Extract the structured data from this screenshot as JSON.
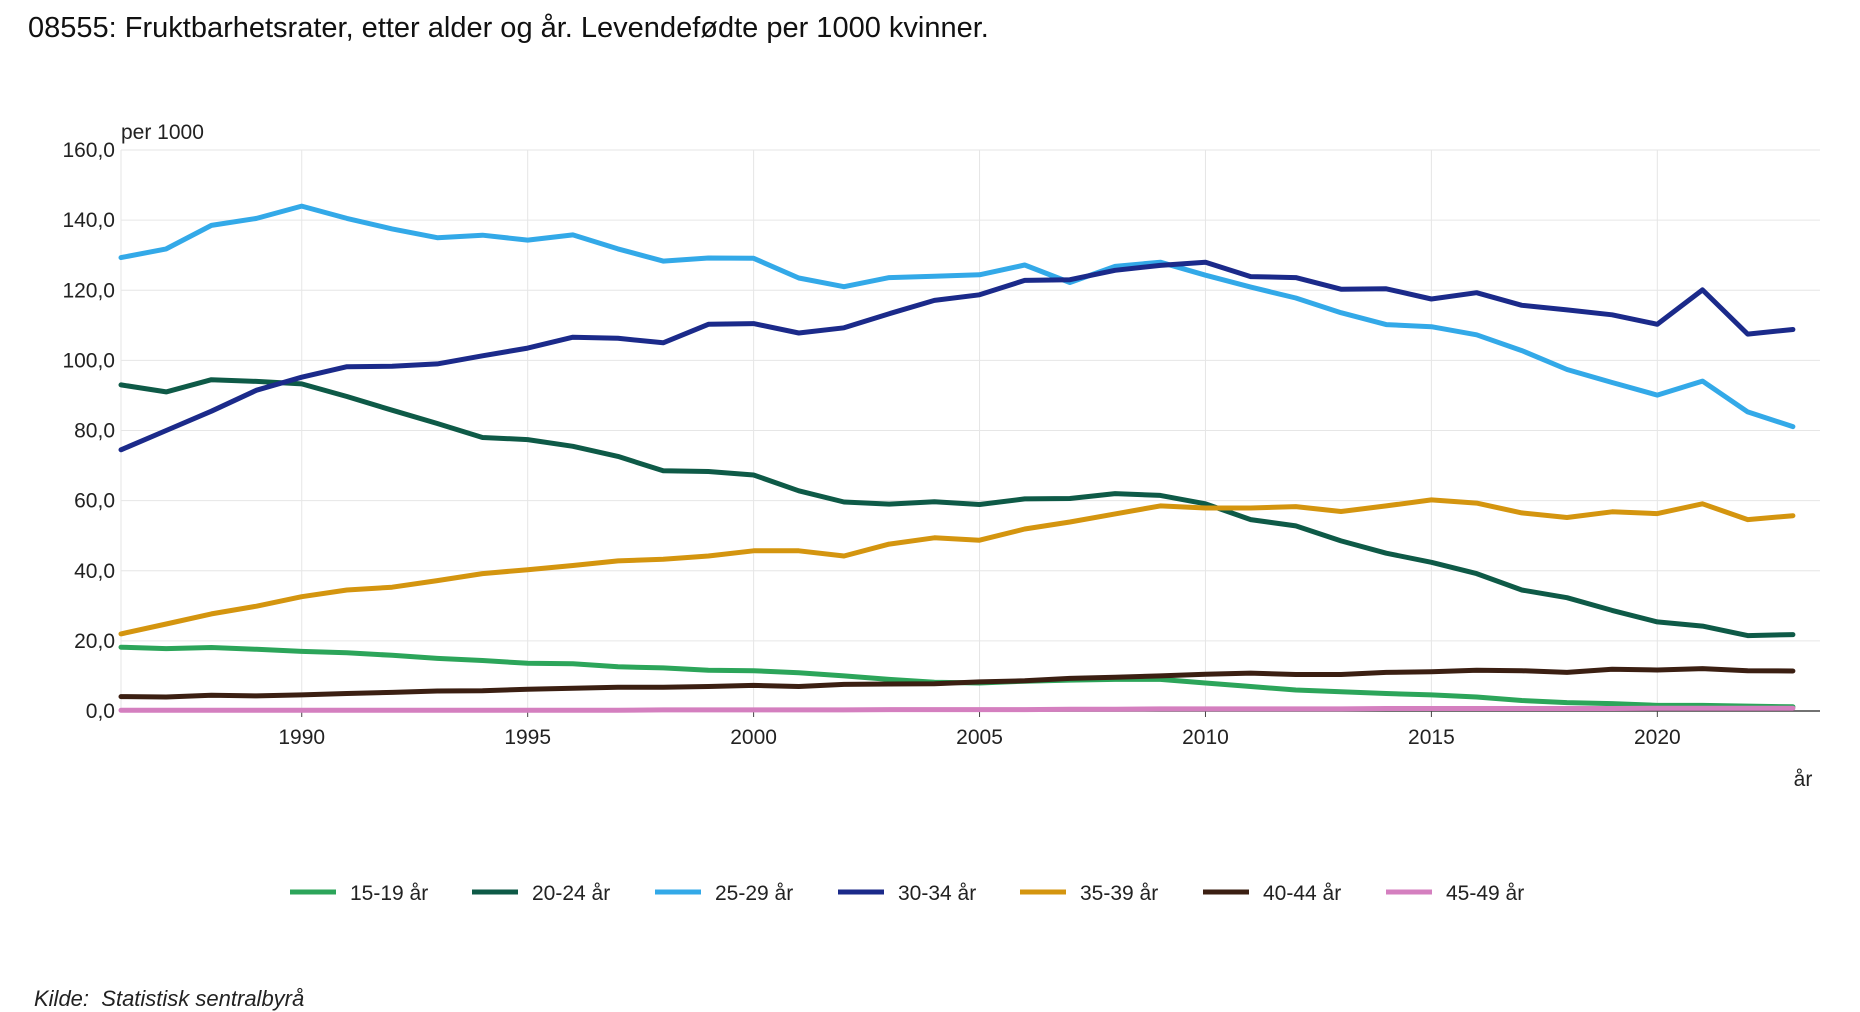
{
  "title": "08555: Fruktbarhetsrater, etter alder og år. Levendefødte per 1000 kvinner.",
  "source_label": "Kilde:",
  "source_name": "Statistisk sentralbyrå",
  "chart_data": {
    "type": "line",
    "ylabel": "per 1000",
    "xlabel": "år",
    "ylim": [
      0,
      160
    ],
    "yticks": [
      "0,0",
      "20,0",
      "40,0",
      "60,0",
      "80,0",
      "100,0",
      "120,0",
      "140,0",
      "160,0"
    ],
    "xlim": [
      1986,
      2023
    ],
    "xticks": [
      "1990",
      "1995",
      "2000",
      "2005",
      "2010",
      "2015",
      "2020"
    ],
    "grid": true,
    "legend_position": "bottom",
    "x": [
      1986,
      1987,
      1988,
      1989,
      1990,
      1991,
      1992,
      1993,
      1994,
      1995,
      1996,
      1997,
      1998,
      1999,
      2000,
      2001,
      2002,
      2003,
      2004,
      2005,
      2006,
      2007,
      2008,
      2009,
      2010,
      2011,
      2012,
      2013,
      2014,
      2015,
      2016,
      2017,
      2018,
      2019,
      2020,
      2021,
      2022,
      2023
    ],
    "series": [
      {
        "name": "15-19 år",
        "color": "#2ca55a",
        "values": [
          18.2,
          17.8,
          18.1,
          17.6,
          17.0,
          16.6,
          15.9,
          15.0,
          14.4,
          13.6,
          13.5,
          12.6,
          12.3,
          11.6,
          11.5,
          10.9,
          10.0,
          9.0,
          8.2,
          8.0,
          8.5,
          8.8,
          9.0,
          9.0,
          8.0,
          7.0,
          6.0,
          5.5,
          5.0,
          4.6,
          4.0,
          3.0,
          2.4,
          2.1,
          1.6,
          1.6,
          1.4,
          1.2
        ]
      },
      {
        "name": "20-24 år",
        "color": "#0e5a47",
        "values": [
          93.0,
          91.0,
          94.5,
          94.0,
          93.3,
          89.7,
          85.8,
          82.0,
          78.0,
          77.4,
          75.5,
          72.6,
          68.5,
          68.3,
          67.3,
          62.8,
          59.6,
          59.0,
          59.7,
          58.9,
          60.5,
          60.6,
          62.0,
          61.5,
          59.1,
          54.6,
          52.8,
          48.5,
          45.0,
          42.4,
          39.2,
          34.5,
          32.3,
          28.7,
          25.4,
          24.2,
          21.5,
          21.8
        ]
      },
      {
        "name": "25-29 år",
        "color": "#33a9e8",
        "values": [
          129.3,
          131.8,
          138.5,
          140.5,
          144.0,
          140.5,
          137.5,
          135.0,
          135.7,
          134.3,
          135.8,
          131.8,
          128.3,
          129.2,
          129.1,
          123.5,
          121.0,
          123.6,
          124.0,
          124.4,
          127.2,
          122.2,
          126.8,
          128.0,
          124.3,
          120.9,
          117.8,
          113.6,
          110.2,
          109.6,
          107.3,
          102.8,
          97.4,
          93.7,
          90.1,
          94.1,
          85.3,
          81.1
        ]
      },
      {
        "name": "30-34 år",
        "color": "#1b2a8a",
        "values": [
          74.5,
          80.0,
          85.5,
          91.5,
          95.2,
          98.2,
          98.3,
          99.0,
          101.3,
          103.5,
          106.6,
          106.3,
          105.0,
          110.3,
          110.5,
          107.8,
          109.3,
          113.3,
          117.1,
          118.7,
          122.8,
          123.0,
          125.7,
          127.1,
          128.0,
          123.9,
          123.6,
          120.3,
          120.4,
          117.5,
          119.3,
          115.7,
          114.4,
          113.0,
          110.3,
          120.1,
          107.5,
          108.8
        ]
      },
      {
        "name": "35-39 år",
        "color": "#d4950f",
        "values": [
          22.0,
          24.8,
          27.7,
          29.9,
          32.6,
          34.5,
          35.3,
          37.2,
          39.2,
          40.3,
          41.5,
          42.8,
          43.3,
          44.2,
          45.7,
          45.7,
          44.2,
          47.6,
          49.4,
          48.7,
          51.9,
          53.9,
          56.2,
          58.5,
          57.9,
          57.9,
          58.3,
          56.9,
          58.5,
          60.2,
          59.3,
          56.5,
          55.2,
          56.8,
          56.3,
          59.1,
          54.6,
          55.7
        ]
      },
      {
        "name": "40-44 år",
        "color": "#3b1f12",
        "values": [
          4.1,
          4.0,
          4.5,
          4.3,
          4.6,
          5.0,
          5.3,
          5.7,
          5.8,
          6.2,
          6.5,
          6.8,
          6.8,
          7.0,
          7.3,
          7.0,
          7.6,
          7.7,
          7.8,
          8.3,
          8.6,
          9.3,
          9.6,
          10.0,
          10.5,
          10.8,
          10.4,
          10.4,
          11.0,
          11.2,
          11.6,
          11.5,
          11.0,
          11.9,
          11.7,
          12.1,
          11.5,
          11.4
        ]
      },
      {
        "name": "45-49 år",
        "color": "#d47fbf",
        "values": [
          0.2,
          0.2,
          0.2,
          0.2,
          0.2,
          0.2,
          0.2,
          0.2,
          0.2,
          0.2,
          0.2,
          0.2,
          0.3,
          0.3,
          0.3,
          0.3,
          0.3,
          0.4,
          0.4,
          0.4,
          0.4,
          0.5,
          0.5,
          0.6,
          0.6,
          0.6,
          0.6,
          0.6,
          0.7,
          0.7,
          0.7,
          0.7,
          0.7,
          0.7,
          0.8,
          0.8,
          0.8,
          0.8
        ]
      }
    ]
  }
}
